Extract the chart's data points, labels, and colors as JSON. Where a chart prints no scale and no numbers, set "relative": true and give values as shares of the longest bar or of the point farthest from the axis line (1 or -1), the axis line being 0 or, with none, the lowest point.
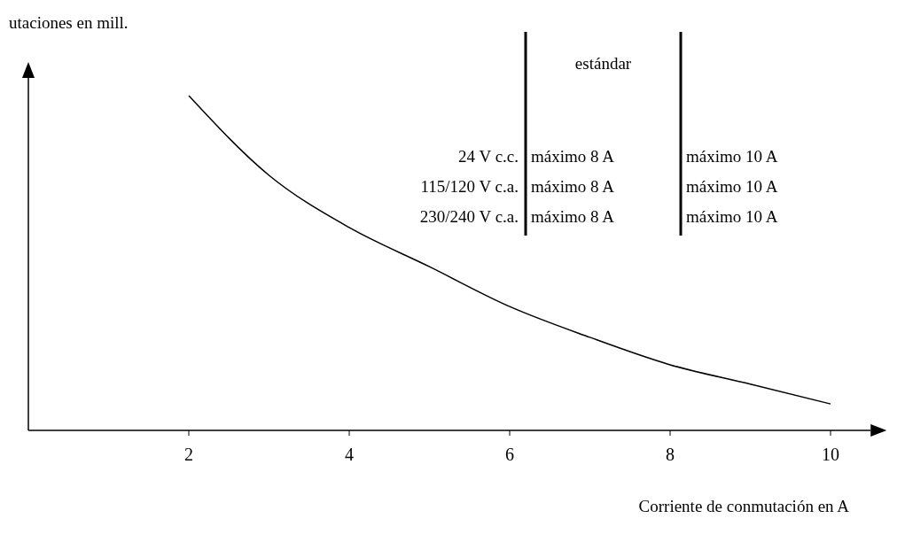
{
  "chart_data": {
    "type": "line",
    "relative": true,
    "ylabel": "utaciones en mill.",
    "xlabel": "Corriente de conmutación en A",
    "x": [
      2,
      3,
      4,
      5,
      6,
      7,
      8,
      9,
      10
    ],
    "series": [
      {
        "color": "#000000",
        "values": [
          1,
          0.762,
          0.606,
          0.489,
          0.37,
          0.278,
          0.196,
          0.138,
          0.079
        ]
      }
    ],
    "xlim": [
      0,
      10.5
    ],
    "xticks": [
      2,
      4,
      6,
      8,
      10
    ],
    "grid": false,
    "marker": "none",
    "line_style": "solid",
    "annotations": [
      "estándar",
      "24 V c.c.",
      "máximo 8 A",
      "máximo 10 A",
      "115/120 V c.a.",
      "máximo 8 A",
      "máximo 10 A",
      "230/240 V c.a.",
      "máximo 8 A",
      "máximo 10 A"
    ]
  }
}
